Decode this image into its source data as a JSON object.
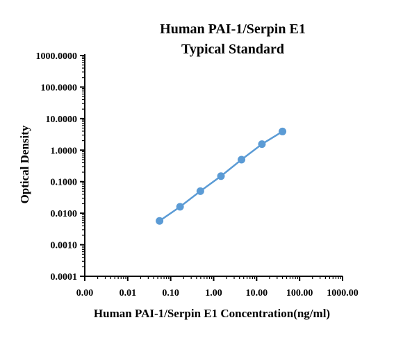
{
  "chart_data": {
    "type": "line",
    "title": "Human PAI-1/Serpin E1",
    "subtitle": "Typical Standard",
    "xlabel": "Human PAI-1/Serpin E1 Concentration(ng/ml)",
    "ylabel": "Optical Density",
    "x_scale": "log",
    "y_scale": "log",
    "xlim": [
      0.001,
      1000
    ],
    "ylim": [
      0.0001,
      1000
    ],
    "x_tick_values": [
      0.001,
      0.01,
      0.1,
      1,
      10,
      100,
      1000
    ],
    "x_tick_labels": [
      "0.00",
      "0.01",
      "0.10",
      "1.00",
      "10.00",
      "100.00",
      "1000.00"
    ],
    "y_tick_values": [
      0.0001,
      0.001,
      0.01,
      0.1,
      1,
      10,
      100,
      1000
    ],
    "y_tick_labels": [
      "0.0001",
      "0.0010",
      "0.0100",
      "0.1000",
      "1.0000",
      "10.0000",
      "100.0000",
      "1000.0000"
    ],
    "grid": false,
    "color": "#5b9bd5",
    "series": [
      {
        "x": [
          0.055,
          0.165,
          0.49,
          1.48,
          4.44,
          13.3,
          40
        ],
        "y": [
          0.0057,
          0.016,
          0.05,
          0.15,
          0.5,
          1.55,
          3.9
        ]
      }
    ]
  }
}
